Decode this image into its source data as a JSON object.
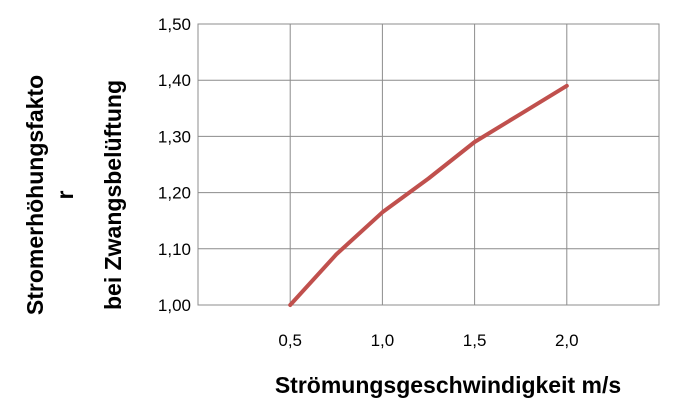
{
  "chart_data": {
    "type": "line",
    "xlabel": "Strömungsgeschwindigkeit m/s",
    "ylabel_lines": [
      "Stromerhöhungsfakto",
      "r",
      "bei Zwangsbelüftung"
    ],
    "x_ticks": [
      "0,5",
      "1,0",
      "1,5",
      "2,0"
    ],
    "y_ticks": [
      "1,00",
      "1,10",
      "1,20",
      "1,30",
      "1,40",
      "1,50"
    ],
    "xlim": [
      0.0,
      2.5
    ],
    "ylim": [
      1.0,
      1.5
    ],
    "grid": true,
    "series": [
      {
        "color": "#c0504d",
        "x": [
          0.5,
          0.75,
          1.0,
          1.25,
          1.5,
          1.75,
          2.0
        ],
        "y": [
          1.0,
          1.09,
          1.165,
          1.225,
          1.29,
          1.34,
          1.39
        ]
      }
    ]
  }
}
